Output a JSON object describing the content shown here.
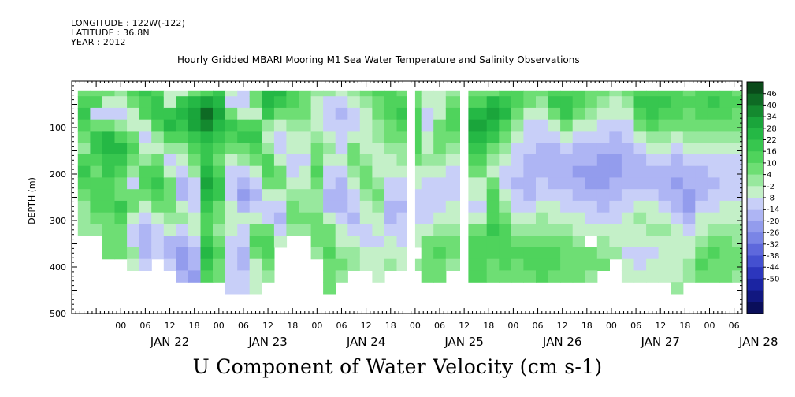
{
  "header": {
    "longitude": "LONGITUDE : 122W(-122)",
    "latitude": "LATITUDE : 36.8N",
    "year": "YEAR : 2012"
  },
  "chart_data": {
    "type": "heatmap",
    "title": "Hourly Gridded MBARI Mooring M1 Sea Water Temperature and Salinity Observations",
    "colorbar_title": "U Component of Water Velocity (cm s-1)",
    "ylabel": "DEPTH (m)",
    "ylim": [
      500,
      0
    ],
    "y_ticks": [
      100,
      200,
      300,
      400,
      500
    ],
    "xlim_hours": [
      -12,
      152
    ],
    "x_hour_ticks": [
      "00",
      "06",
      "12",
      "18",
      "00",
      "06",
      "12",
      "18",
      "00",
      "06",
      "12",
      "18",
      "00",
      "06",
      "12",
      "18",
      "00",
      "06",
      "12",
      "18",
      "00",
      "06",
      "12",
      "18",
      "00",
      "06"
    ],
    "x_day_labels": [
      "JAN 22",
      "JAN 23",
      "JAN 24",
      "JAN 25",
      "JAN 26",
      "JAN 27",
      "JAN 28"
    ],
    "colorbar_levels": [
      "46",
      "40",
      "34",
      "28",
      "22",
      "16",
      "10",
      "4",
      "-2",
      "-8",
      "-14",
      "-20",
      "-26",
      "-32",
      "-38",
      "-44",
      "-50"
    ],
    "colorbar_colors": [
      "#0a4a1a",
      "#0e6a24",
      "#14892f",
      "#1aa53b",
      "#25b845",
      "#37c64f",
      "#4fd35c",
      "#6ede74",
      "#98e89e",
      "#c4f0c8",
      "#c8cff8",
      "#aeb5f4",
      "#939ced",
      "#7a85e6",
      "#5e68dc",
      "#4450d0",
      "#2c36bd",
      "#1b24a2",
      "#111780",
      "#0a0e5a"
    ],
    "columns": [
      {
        "t": -9,
        "v": [
          8,
          14,
          20,
          12,
          6,
          0,
          12,
          18,
          10,
          5,
          0,
          0,
          0,
          0,
          0,
          0,
          0,
          0
        ]
      },
      {
        "t": -6,
        "v": [
          6,
          10,
          -10,
          4,
          16,
          18,
          14,
          8,
          12,
          14,
          10,
          4,
          0,
          0,
          0,
          0,
          0,
          0
        ]
      },
      {
        "t": -3,
        "v": [
          4,
          -8,
          -14,
          8,
          22,
          24,
          20,
          16,
          12,
          10,
          12,
          8,
          4,
          8,
          6,
          0,
          0,
          0
        ]
      },
      {
        "t": 0,
        "v": [
          2,
          -4,
          -10,
          2,
          14,
          22,
          18,
          12,
          8,
          4,
          16,
          12,
          8,
          6,
          4,
          0,
          0,
          0
        ]
      },
      {
        "t": 3,
        "v": [
          10,
          8,
          -6,
          -8,
          4,
          10,
          4,
          -2,
          -10,
          4,
          8,
          -6,
          -10,
          -12,
          2,
          -6,
          0,
          0
        ]
      },
      {
        "t": 6,
        "v": [
          20,
          14,
          10,
          -4,
          -10,
          -4,
          2,
          10,
          14,
          8,
          -4,
          -12,
          -16,
          -18,
          -20,
          -10,
          0,
          0
        ]
      },
      {
        "t": 9,
        "v": [
          14,
          18,
          20,
          10,
          0,
          -6,
          4,
          12,
          16,
          10,
          6,
          -6,
          -10,
          -14,
          -12,
          0,
          0,
          0
        ]
      },
      {
        "t": 12,
        "v": [
          -8,
          -4,
          18,
          22,
          12,
          -2,
          -10,
          -4,
          6,
          4,
          8,
          2,
          -8,
          -16,
          -18,
          -14,
          0,
          0
        ]
      },
      {
        "t": 15,
        "v": [
          -4,
          16,
          24,
          18,
          10,
          2,
          -4,
          -12,
          -18,
          -16,
          -8,
          -2,
          -10,
          -20,
          -22,
          -24,
          -20,
          0
        ]
      },
      {
        "t": 18,
        "v": [
          6,
          24,
          30,
          28,
          18,
          12,
          6,
          -2,
          -10,
          -14,
          -12,
          -4,
          -6,
          -12,
          -18,
          -20,
          -24,
          0
        ]
      },
      {
        "t": 21,
        "v": [
          10,
          30,
          40,
          34,
          26,
          20,
          18,
          24,
          28,
          24,
          16,
          10,
          14,
          20,
          22,
          16,
          14,
          0
        ]
      },
      {
        "t": 24,
        "v": [
          18,
          26,
          30,
          24,
          16,
          10,
          8,
          14,
          20,
          16,
          8,
          4,
          2,
          8,
          12,
          6,
          8,
          0
        ]
      },
      {
        "t": 27,
        "v": [
          -6,
          -10,
          8,
          16,
          12,
          4,
          -4,
          -10,
          -14,
          -12,
          -6,
          -4,
          -8,
          -10,
          -10,
          -10,
          -12,
          -14
        ]
      },
      {
        "t": 30,
        "v": [
          -14,
          -12,
          -6,
          14,
          16,
          8,
          -2,
          -12,
          -18,
          -22,
          -16,
          -8,
          -10,
          -14,
          -16,
          -16,
          -14,
          -12
        ]
      },
      {
        "t": 33,
        "v": [
          8,
          4,
          -8,
          10,
          16,
          12,
          6,
          -4,
          -12,
          -16,
          -12,
          -6,
          6,
          10,
          6,
          -4,
          -6,
          -6
        ]
      },
      {
        "t": 36,
        "v": [
          22,
          24,
          16,
          2,
          -8,
          -2,
          10,
          14,
          4,
          -8,
          -14,
          -12,
          4,
          10,
          14,
          6,
          2,
          0
        ]
      },
      {
        "t": 39,
        "v": [
          24,
          16,
          6,
          -6,
          -14,
          -12,
          -4,
          6,
          8,
          -4,
          -10,
          -16,
          -10,
          -4,
          0,
          0,
          0,
          0
        ]
      },
      {
        "t": 42,
        "v": [
          14,
          10,
          4,
          -2,
          -6,
          -8,
          -12,
          -10,
          -6,
          0,
          6,
          4,
          2,
          0,
          0,
          0,
          0,
          0
        ]
      },
      {
        "t": 45,
        "v": [
          4,
          8,
          6,
          2,
          -4,
          -8,
          -10,
          -8,
          -4,
          -2,
          2,
          6,
          2,
          0,
          0,
          0,
          0,
          0
        ]
      },
      {
        "t": 48,
        "v": [
          2,
          -4,
          -8,
          -6,
          -2,
          4,
          8,
          10,
          6,
          2,
          -2,
          4,
          8,
          6,
          2,
          0,
          0,
          0
        ]
      },
      {
        "t": 51,
        "v": [
          -2,
          -10,
          -14,
          -10,
          -6,
          -2,
          -6,
          -10,
          -14,
          -18,
          -16,
          -6,
          4,
          8,
          10,
          6,
          6,
          4
        ]
      },
      {
        "t": 54,
        "v": [
          -8,
          -14,
          -18,
          -14,
          -12,
          -10,
          -8,
          -12,
          -16,
          -20,
          -20,
          -14,
          -8,
          -4,
          2,
          4,
          2,
          0
        ]
      },
      {
        "t": 57,
        "v": [
          2,
          -8,
          -12,
          -10,
          -6,
          4,
          6,
          2,
          -6,
          -10,
          -14,
          -18,
          -12,
          -6,
          -2,
          -2,
          0,
          0
        ]
      },
      {
        "t": 60,
        "v": [
          6,
          2,
          -4,
          -6,
          -8,
          -6,
          -2,
          4,
          6,
          2,
          -4,
          -8,
          -12,
          -10,
          -6,
          -4,
          0,
          0
        ]
      },
      {
        "t": 63,
        "v": [
          10,
          8,
          6,
          2,
          -2,
          -4,
          -6,
          -4,
          2,
          4,
          2,
          -4,
          -8,
          -10,
          -8,
          -6,
          -4,
          0
        ]
      },
      {
        "t": 66,
        "v": [
          12,
          14,
          10,
          8,
          4,
          2,
          -4,
          -8,
          -10,
          -14,
          -18,
          -20,
          -14,
          -8,
          -4,
          -2,
          0,
          0
        ]
      },
      {
        "t": 69,
        "v": [
          8,
          12,
          16,
          12,
          6,
          2,
          -2,
          -6,
          -10,
          -14,
          -16,
          -14,
          -12,
          -10,
          -6,
          -4,
          0,
          0
        ]
      },
      {
        "t": 72,
        "v": [
          4,
          6,
          10,
          12,
          14,
          10,
          4,
          -4,
          -8,
          -10,
          -12,
          -10,
          -6,
          -4,
          0,
          2,
          0,
          0
        ]
      },
      {
        "t": 75,
        "v": [
          -6,
          -8,
          -10,
          -12,
          -8,
          -4,
          -2,
          -6,
          -10,
          -12,
          -14,
          -10,
          -4,
          4,
          8,
          6,
          4,
          0
        ]
      },
      {
        "t": 78,
        "v": [
          -4,
          -6,
          -4,
          4,
          8,
          6,
          2,
          -4,
          -10,
          -14,
          -10,
          -6,
          -2,
          6,
          10,
          8,
          4,
          0
        ]
      },
      {
        "t": 81,
        "v": [
          -2,
          6,
          12,
          10,
          6,
          -2,
          -8,
          -12,
          -14,
          -10,
          -8,
          -4,
          0,
          4,
          6,
          2,
          0,
          0
        ]
      },
      {
        "t": 88,
        "v": [
          4,
          10,
          24,
          28,
          22,
          18,
          10,
          4,
          -4,
          -8,
          -10,
          -6,
          6,
          10,
          14,
          12,
          10,
          0
        ]
      },
      {
        "t": 91,
        "v": [
          8,
          22,
          30,
          26,
          18,
          8,
          2,
          -6,
          6,
          10,
          14,
          12,
          16,
          14,
          12,
          8,
          6,
          0
        ]
      },
      {
        "t": 94,
        "v": [
          12,
          20,
          22,
          14,
          6,
          -2,
          -6,
          -10,
          -12,
          -8,
          -2,
          4,
          10,
          12,
          14,
          10,
          8,
          0
        ]
      },
      {
        "t": 97,
        "v": [
          14,
          12,
          8,
          -2,
          -8,
          -10,
          -12,
          -14,
          -16,
          -14,
          -10,
          -6,
          2,
          8,
          10,
          8,
          6,
          0
        ]
      },
      {
        "t": 100,
        "v": [
          8,
          4,
          -4,
          -10,
          -12,
          -14,
          -16,
          -18,
          -18,
          -16,
          -12,
          -6,
          0,
          6,
          10,
          10,
          8,
          0
        ]
      },
      {
        "t": 103,
        "v": [
          4,
          2,
          -6,
          -12,
          -14,
          -16,
          -18,
          -16,
          -14,
          -10,
          -6,
          -2,
          2,
          8,
          12,
          12,
          10,
          0
        ]
      },
      {
        "t": 106,
        "v": [
          10,
          16,
          8,
          -6,
          -12,
          -16,
          -20,
          -18,
          -16,
          -12,
          -8,
          -4,
          2,
          8,
          10,
          10,
          8,
          0
        ]
      },
      {
        "t": 109,
        "v": [
          12,
          20,
          18,
          4,
          -8,
          -14,
          -18,
          -20,
          -18,
          -14,
          -10,
          -6,
          -2,
          4,
          8,
          8,
          6,
          0
        ]
      },
      {
        "t": 112,
        "v": [
          14,
          12,
          6,
          -4,
          -10,
          -16,
          -20,
          -22,
          -20,
          -16,
          -12,
          -8,
          -4,
          2,
          6,
          6,
          4,
          0
        ]
      },
      {
        "t": 115,
        "v": [
          8,
          4,
          -2,
          -8,
          -12,
          -16,
          -20,
          -22,
          -22,
          -18,
          -14,
          -10,
          -6,
          0,
          4,
          4,
          2,
          0
        ]
      },
      {
        "t": 118,
        "v": [
          4,
          -2,
          -6,
          -10,
          -14,
          -18,
          -22,
          -24,
          -22,
          -20,
          -16,
          -12,
          -8,
          -2,
          2,
          4,
          0,
          0
        ]
      },
      {
        "t": 121,
        "v": [
          2,
          -4,
          -8,
          -12,
          -16,
          -20,
          -22,
          -22,
          -20,
          -18,
          -14,
          -10,
          -8,
          -4,
          -2,
          0,
          0,
          0
        ]
      },
      {
        "t": 124,
        "v": [
          6,
          2,
          -4,
          -10,
          -14,
          -18,
          -20,
          -20,
          -18,
          -14,
          -10,
          -8,
          -6,
          -8,
          -10,
          -8,
          -4,
          0
        ]
      },
      {
        "t": 127,
        "v": [
          10,
          16,
          12,
          4,
          -6,
          -12,
          -16,
          -18,
          -16,
          -12,
          -6,
          -2,
          -4,
          -8,
          -12,
          -10,
          -6,
          0
        ]
      },
      {
        "t": 130,
        "v": [
          12,
          20,
          18,
          10,
          2,
          -6,
          -12,
          -16,
          -18,
          -14,
          -8,
          -4,
          -2,
          -6,
          -10,
          -8,
          -6,
          0
        ]
      },
      {
        "t": 133,
        "v": [
          14,
          18,
          14,
          6,
          -2,
          -8,
          -14,
          -18,
          -20,
          -18,
          -12,
          -6,
          -2,
          -4,
          -8,
          -8,
          -4,
          0
        ]
      },
      {
        "t": 136,
        "v": [
          10,
          14,
          10,
          4,
          -4,
          -10,
          -16,
          -20,
          -22,
          -20,
          -16,
          -10,
          -6,
          -4,
          -6,
          -6,
          -4,
          -2
        ]
      },
      {
        "t": 139,
        "v": [
          8,
          10,
          8,
          4,
          -2,
          -8,
          -14,
          -18,
          -20,
          -22,
          -22,
          -16,
          -10,
          -6,
          -4,
          -2,
          2,
          0
        ]
      },
      {
        "t": 142,
        "v": [
          12,
          14,
          12,
          6,
          0,
          -6,
          -12,
          -16,
          -18,
          -16,
          -12,
          -8,
          -4,
          2,
          8,
          10,
          6,
          0
        ]
      },
      {
        "t": 145,
        "v": [
          14,
          16,
          14,
          8,
          2,
          -4,
          -10,
          -14,
          -16,
          -14,
          -10,
          -6,
          2,
          6,
          10,
          8,
          6,
          0
        ]
      },
      {
        "t": 148,
        "v": [
          10,
          12,
          10,
          6,
          0,
          -6,
          -10,
          -12,
          -14,
          -12,
          -8,
          -4,
          0,
          4,
          6,
          6,
          4,
          0
        ]
      },
      {
        "t": 151,
        "v": [
          8,
          10,
          8,
          4,
          -2,
          -6,
          -10,
          -12,
          -12,
          -10,
          -8,
          -6,
          -2,
          2,
          4,
          4,
          2,
          0
        ]
      }
    ],
    "depth_step_m": 25,
    "depth_start_m": 20,
    "missing_hours": [
      [
        70,
        72
      ],
      [
        83,
        85
      ]
    ]
  }
}
